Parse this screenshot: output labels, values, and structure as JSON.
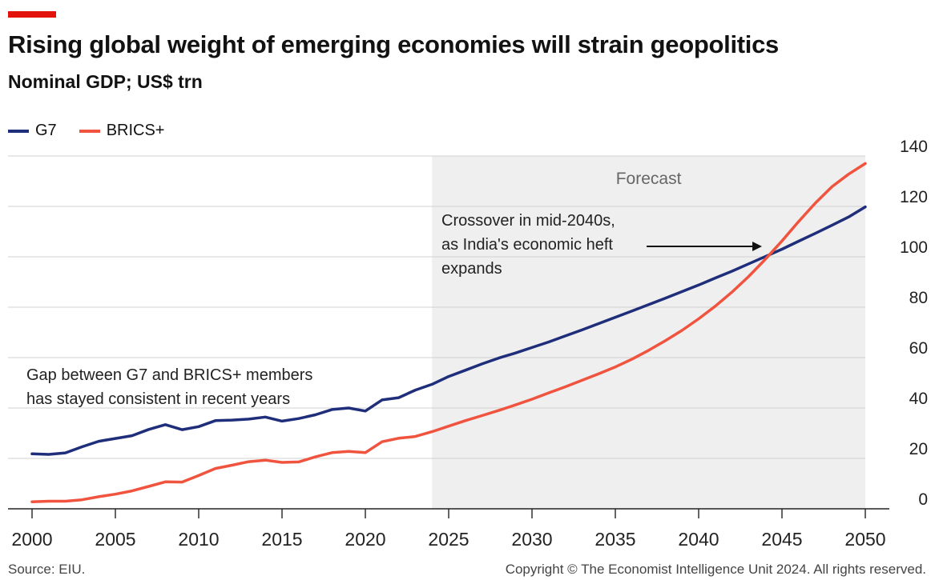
{
  "header": {
    "title": "Rising global weight of emerging economies will strain geopolitics",
    "subtitle": "Nominal GDP; US$ trn"
  },
  "footer": {
    "source": "Source: EIU.",
    "copyright": "Copyright © The Economist Intelligence Unit 2024. All rights reserved."
  },
  "colors": {
    "accent": "#e3120b",
    "g7": "#1f2e7a",
    "brics": "#f0533e",
    "forecast_shade": "#efefef",
    "grid": "#d0d0d0"
  },
  "chart_data": {
    "type": "line",
    "title": "Rising global weight of emerging economies will strain geopolitics",
    "subtitle": "Nominal GDP; US$ trn",
    "xlabel": "",
    "ylabel": "",
    "xlim": [
      2000,
      2050
    ],
    "ylim": [
      0,
      140
    ],
    "x_ticks": [
      "2000",
      "2005",
      "2010",
      "2015",
      "2020",
      "2025",
      "2030",
      "2035",
      "2040",
      "2045",
      "2050"
    ],
    "y_ticks": [
      "0",
      "20",
      "40",
      "60",
      "80",
      "100",
      "120",
      "140"
    ],
    "grid": true,
    "legend_position": "top-left",
    "forecast": {
      "start": 2024,
      "end": 2050,
      "label": "Forecast"
    },
    "series": [
      {
        "name": "G7",
        "x": [
          2000,
          2001,
          2002,
          2003,
          2004,
          2005,
          2006,
          2007,
          2008,
          2009,
          2010,
          2011,
          2012,
          2013,
          2014,
          2015,
          2016,
          2017,
          2018,
          2019,
          2020,
          2021,
          2022,
          2023,
          2024,
          2025,
          2026,
          2027,
          2028,
          2029,
          2030,
          2031,
          2032,
          2033,
          2034,
          2035,
          2036,
          2037,
          2038,
          2039,
          2040,
          2041,
          2042,
          2043,
          2044,
          2045,
          2046,
          2047,
          2048,
          2049,
          2050
        ],
        "values": [
          21.8,
          21.6,
          22.2,
          24.6,
          26.8,
          27.9,
          29.0,
          31.5,
          33.4,
          31.4,
          32.6,
          35.0,
          35.2,
          35.6,
          36.4,
          34.8,
          35.8,
          37.3,
          39.4,
          40.0,
          38.8,
          43.2,
          44.1,
          47.1,
          49.4,
          52.5,
          55.0,
          57.5,
          59.8,
          61.8,
          64.0,
          66.2,
          68.6,
          71.0,
          73.5,
          76.0,
          78.5,
          81.0,
          83.6,
          86.2,
          88.8,
          91.6,
          94.3,
          97.2,
          100.1,
          103.0,
          106.2,
          109.3,
          112.5,
          115.8,
          119.8
        ]
      },
      {
        "name": "BRICS+",
        "x": [
          2000,
          2001,
          2002,
          2003,
          2004,
          2005,
          2006,
          2007,
          2008,
          2009,
          2010,
          2011,
          2012,
          2013,
          2014,
          2015,
          2016,
          2017,
          2018,
          2019,
          2020,
          2021,
          2022,
          2023,
          2024,
          2025,
          2026,
          2027,
          2028,
          2029,
          2030,
          2031,
          2032,
          2033,
          2034,
          2035,
          2036,
          2037,
          2038,
          2039,
          2040,
          2041,
          2042,
          2043,
          2044,
          2045,
          2046,
          2047,
          2048,
          2049,
          2050
        ],
        "values": [
          2.8,
          3.0,
          3.0,
          3.6,
          4.8,
          5.8,
          7.1,
          8.9,
          10.7,
          10.6,
          13.2,
          16.0,
          17.3,
          18.7,
          19.3,
          18.4,
          18.6,
          20.6,
          22.3,
          22.8,
          22.3,
          26.6,
          28.0,
          28.7,
          30.6,
          32.8,
          35.0,
          37.0,
          39.0,
          41.2,
          43.5,
          46.0,
          48.4,
          51.0,
          53.6,
          56.3,
          59.4,
          62.9,
          66.7,
          70.8,
          75.4,
          80.4,
          86.0,
          92.2,
          99.0,
          106.3,
          114.0,
          121.3,
          127.8,
          132.8,
          137.0
        ]
      }
    ],
    "annotations": [
      {
        "text_lines": [
          "Gap between G7 and BRICS+ members",
          "has stayed consistent in recent years"
        ]
      },
      {
        "text_lines": [
          "Crossover in mid-2040s,",
          "as India's economic heft",
          "expands"
        ],
        "arrow_to": {
          "x": 2043.8,
          "y": 101
        }
      }
    ]
  }
}
